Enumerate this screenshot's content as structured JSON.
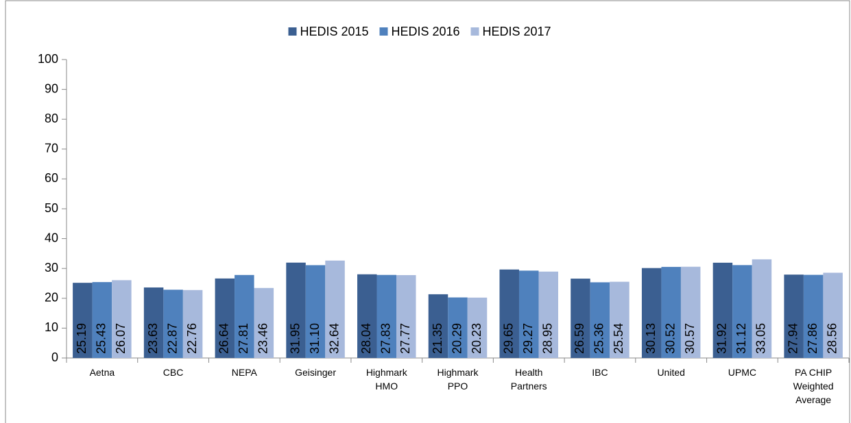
{
  "chart_data": {
    "type": "bar",
    "categories": [
      [
        "Aetna"
      ],
      [
        "CBC"
      ],
      [
        "NEPA"
      ],
      [
        "Geisinger"
      ],
      [
        "Highmark",
        "HMO"
      ],
      [
        "Highmark",
        "PPO"
      ],
      [
        "Health",
        "Partners"
      ],
      [
        "IBC"
      ],
      [
        "United"
      ],
      [
        "UPMC"
      ],
      [
        "PA CHIP",
        "Weighted",
        "Average"
      ]
    ],
    "series": [
      {
        "name": "HEDIS 2015",
        "color": "#3b5f91",
        "values": [
          25.19,
          23.63,
          26.64,
          31.95,
          28.04,
          21.35,
          29.65,
          26.59,
          30.13,
          31.92,
          27.94
        ],
        "value_labels": [
          "25.19",
          "23.63",
          "26.64",
          "31.95",
          "28.04",
          "21.35",
          "29.65",
          "26.59",
          "30.13",
          "31.92",
          "27.94"
        ]
      },
      {
        "name": "HEDIS 2016",
        "color": "#4f81bd",
        "values": [
          25.43,
          22.87,
          27.81,
          31.1,
          27.83,
          20.29,
          29.27,
          25.36,
          30.52,
          31.12,
          27.86
        ],
        "value_labels": [
          "25.43",
          "22.87",
          "27.81",
          "31.10",
          "27.83",
          "20.29",
          "29.27",
          "25.36",
          "30.52",
          "31.12",
          "27.86"
        ]
      },
      {
        "name": "HEDIS 2017",
        "color": "#a7b9dc",
        "values": [
          26.07,
          22.76,
          23.46,
          32.64,
          27.77,
          20.23,
          28.95,
          25.54,
          30.57,
          33.05,
          28.56
        ],
        "value_labels": [
          "26.07",
          "22.76",
          "23.46",
          "32.64",
          "27.77",
          "20.23",
          "28.95",
          "25.54",
          "30.57",
          "33.05",
          "28.56"
        ]
      }
    ],
    "ylim": [
      0,
      100
    ],
    "yticks": [
      0,
      10,
      20,
      30,
      40,
      50,
      60,
      70,
      80,
      90,
      100
    ],
    "grid": false,
    "legend": "top"
  }
}
